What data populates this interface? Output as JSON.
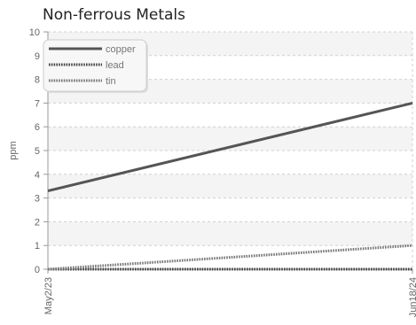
{
  "chart_data": {
    "type": "line",
    "title": "Non-ferrous Metals",
    "xlabel": "",
    "ylabel": "ppm",
    "x": [
      "May2/23",
      "Jun18/24"
    ],
    "xlim": [
      "May2/23",
      "Jun18/24"
    ],
    "ylim": [
      0,
      10
    ],
    "y_ticks": [
      0,
      1,
      2,
      3,
      4,
      5,
      6,
      7,
      8,
      9,
      10
    ],
    "grid": true,
    "legend_position": "top-left",
    "series": [
      {
        "name": "copper",
        "values": [
          3.3,
          7.0
        ],
        "color": "#555555",
        "style": "solid"
      },
      {
        "name": "lead",
        "values": [
          0.0,
          0.0
        ],
        "color": "#444444",
        "style": "dotted"
      },
      {
        "name": "tin",
        "values": [
          0.0,
          1.0
        ],
        "color": "#777777",
        "style": "dotted"
      }
    ]
  }
}
